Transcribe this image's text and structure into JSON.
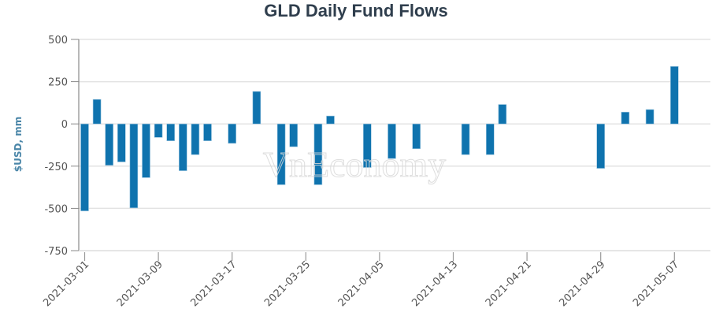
{
  "chart_data": {
    "type": "bar",
    "title": "GLD Daily Fund Flows",
    "xlabel": "",
    "ylabel": "$USD, mm",
    "ylim": [
      -750,
      500
    ],
    "yticks": [
      500,
      250,
      0,
      -250,
      -500,
      -750
    ],
    "grid": true,
    "legend": null,
    "bar_color": "#0f73ae",
    "xtick_labels": [
      "2021-03-01",
      "2021-03-09",
      "2021-03-17",
      "2021-03-25",
      "2021-04-05",
      "2021-04-13",
      "2021-04-21",
      "2021-04-29",
      "2021-05-07"
    ],
    "categories": [
      "2021-03-01",
      "2021-03-02",
      "2021-03-03",
      "2021-03-04",
      "2021-03-05",
      "2021-03-08",
      "2021-03-09",
      "2021-03-10",
      "2021-03-11",
      "2021-03-12",
      "2021-03-15",
      "2021-03-16",
      "2021-03-17",
      "2021-03-18",
      "2021-03-19",
      "2021-03-22",
      "2021-03-23",
      "2021-03-24",
      "2021-03-25",
      "2021-03-26",
      "2021-03-29",
      "2021-03-30",
      "2021-03-31",
      "2021-04-01",
      "2021-04-05",
      "2021-04-06",
      "2021-04-07",
      "2021-04-08",
      "2021-04-09",
      "2021-04-12",
      "2021-04-13",
      "2021-04-14",
      "2021-04-15",
      "2021-04-16",
      "2021-04-19",
      "2021-04-20",
      "2021-04-21",
      "2021-04-22",
      "2021-04-23",
      "2021-04-26",
      "2021-04-27",
      "2021-04-28",
      "2021-04-29",
      "2021-04-30",
      "2021-05-03",
      "2021-05-04",
      "2021-05-05",
      "2021-05-06",
      "2021-05-07"
    ],
    "values": [
      -515,
      145,
      -245,
      -225,
      -497,
      -318,
      -80,
      -100,
      -277,
      -182,
      -100,
      0,
      -115,
      0,
      192,
      0,
      -360,
      -135,
      0,
      -360,
      47,
      0,
      0,
      -258,
      0,
      -205,
      0,
      -147,
      0,
      0,
      0,
      -182,
      0,
      -182,
      115,
      0,
      0,
      0,
      0,
      0,
      0,
      0,
      -263,
      0,
      70,
      0,
      85,
      0,
      340
    ]
  },
  "watermark": "VnEconomy"
}
